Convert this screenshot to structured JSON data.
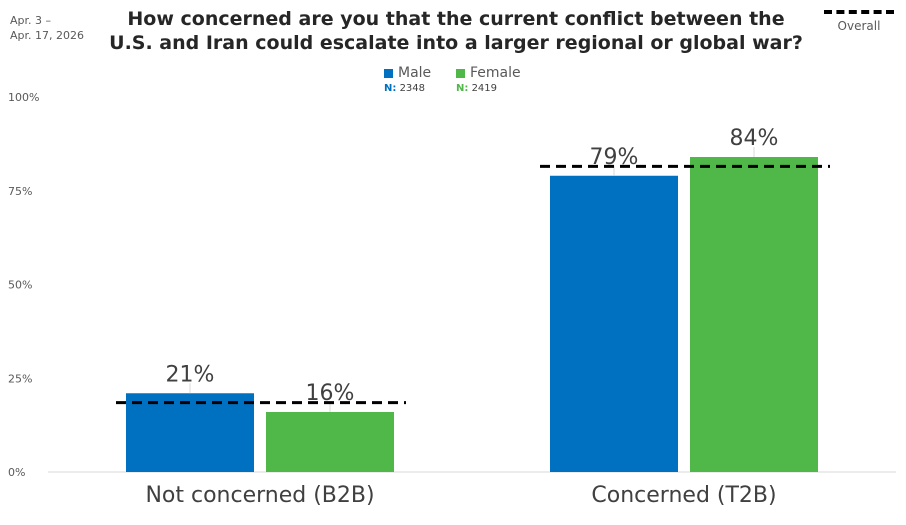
{
  "header": {
    "date_line1": "Apr. 3 –",
    "date_line2": "Apr. 17, 2026",
    "title_line1": "How concerned are you that the current conflict between the",
    "title_line2": "U.S. and Iran could escalate into a larger regional or global war?"
  },
  "overall_legend": {
    "label": "Overall"
  },
  "legend": [
    {
      "name": "Male",
      "n_label": "N:",
      "n_value": "2348",
      "color": "#0070C0"
    },
    {
      "name": "Female",
      "n_label": "N:",
      "n_value": "2419",
      "color": "#50B848"
    }
  ],
  "chart_data": {
    "type": "bar",
    "categories": [
      "Not concerned (B2B)",
      "Concerned (T2B)"
    ],
    "series": [
      {
        "name": "Male",
        "values": [
          21,
          79
        ],
        "labels": [
          "21%",
          "79%"
        ],
        "color": "#0070C0"
      },
      {
        "name": "Female",
        "values": [
          16,
          84
        ],
        "labels": [
          "16%",
          "84%"
        ],
        "color": "#50B848"
      }
    ],
    "overall": {
      "name": "Overall",
      "values": [
        18.5,
        81.5
      ],
      "style": "dashed"
    },
    "ylim": [
      0,
      100
    ],
    "yticks": [
      0,
      25,
      50,
      75,
      100
    ],
    "ytick_labels": [
      "0%",
      "25%",
      "50%",
      "75%",
      "100%"
    ],
    "grid": false,
    "legend_position": "top"
  }
}
